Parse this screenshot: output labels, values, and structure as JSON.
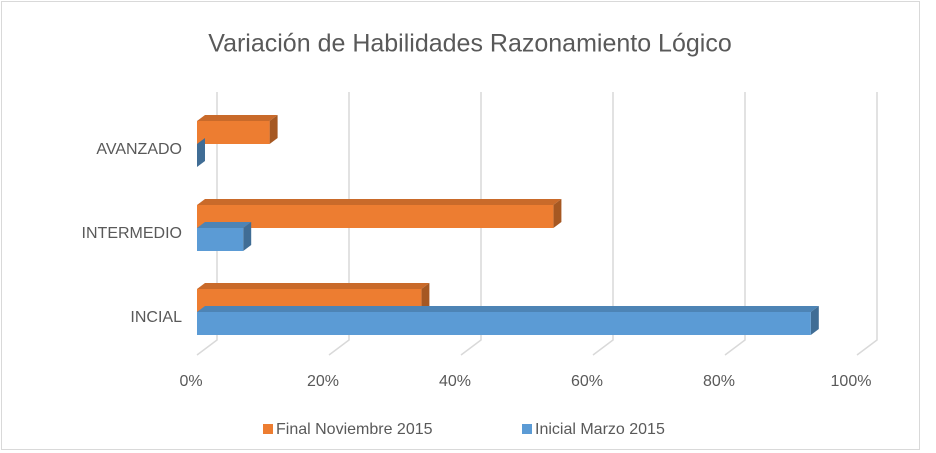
{
  "chart_data": {
    "type": "bar3d-horizontal",
    "title": "Variación de Habilidades Razonamiento Lógico",
    "categories": [
      "INCIAL",
      "INTERMEDIO",
      "AVANZADO"
    ],
    "series": [
      {
        "name": "Final Noviembre 2015",
        "color": "#ed7d31",
        "values": [
          34,
          54,
          11
        ]
      },
      {
        "name": "Inicial Marzo 2015",
        "color": "#5b9bd5",
        "values": [
          93,
          7,
          0
        ]
      }
    ],
    "xlim": [
      0,
      100
    ],
    "xticks": [
      {
        "value": 0,
        "label": "0%"
      },
      {
        "value": 20,
        "label": "20%"
      },
      {
        "value": 40,
        "label": "40%"
      },
      {
        "value": 60,
        "label": "60%"
      },
      {
        "value": 80,
        "label": "80%"
      },
      {
        "value": 100,
        "label": "100%"
      }
    ],
    "grid": true,
    "legend": "bottom"
  }
}
